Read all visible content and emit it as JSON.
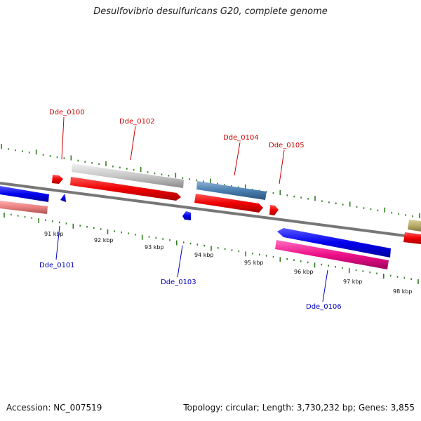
{
  "title": "Desulfovibrio desulfuricans G20, complete genome",
  "footer": {
    "accession": "Accession: NC_007519",
    "summary": "Topology: circular; Length: 3,730,232 bp; Genes: 3,855"
  },
  "scale": {
    "kbp_labels": [
      "91 kbp",
      "92 kbp",
      "93 kbp",
      "94 kbp",
      "95 kbp",
      "96 kbp",
      "97 kbp",
      "98 kbp"
    ]
  },
  "colors": {
    "forward_label": "#cc0000",
    "reverse_label": "#0000bb",
    "tick": "#2e7d1e",
    "backbone": "#808080"
  },
  "genes_labeled": [
    {
      "name": "Dde_0100",
      "strand": "forward"
    },
    {
      "name": "Dde_0101",
      "strand": "reverse"
    },
    {
      "name": "Dde_0102",
      "strand": "forward"
    },
    {
      "name": "Dde_0103",
      "strand": "reverse"
    },
    {
      "name": "Dde_0104",
      "strand": "forward"
    },
    {
      "name": "Dde_0105",
      "strand": "forward"
    },
    {
      "name": "Dde_0106",
      "strand": "reverse"
    }
  ]
}
